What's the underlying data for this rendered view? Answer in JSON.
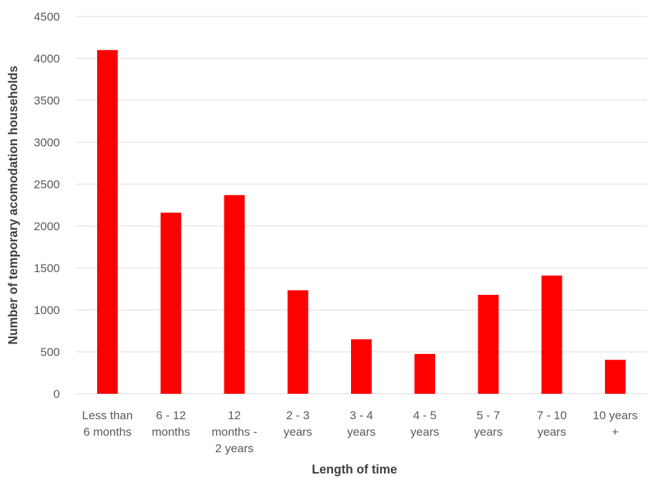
{
  "chart_data": {
    "type": "bar",
    "title": "",
    "xlabel": "Length of time",
    "ylabel": "Number of temporary acomodation households",
    "categories": [
      [
        "Less than",
        "6 months"
      ],
      [
        "6 - 12",
        "months"
      ],
      [
        "12",
        "months -",
        "2 years"
      ],
      [
        "2 - 3",
        "years"
      ],
      [
        "3 - 4",
        "years"
      ],
      [
        "4 - 5",
        "years"
      ],
      [
        "5 - 7",
        "years"
      ],
      [
        "7 - 10",
        "years"
      ],
      [
        "10 years",
        "+"
      ]
    ],
    "values": [
      4100,
      2160,
      2370,
      1235,
      650,
      475,
      1180,
      1410,
      405
    ],
    "ylim": [
      0,
      4500
    ],
    "yticks": [
      0,
      500,
      1000,
      1500,
      2000,
      2500,
      3000,
      3500,
      4000,
      4500
    ],
    "grid": true,
    "legend": "none",
    "colors": {
      "bar": "#ff0000",
      "grid": "#d9d9d9",
      "tick_text": "#595959",
      "axis_title": "#404040"
    }
  }
}
